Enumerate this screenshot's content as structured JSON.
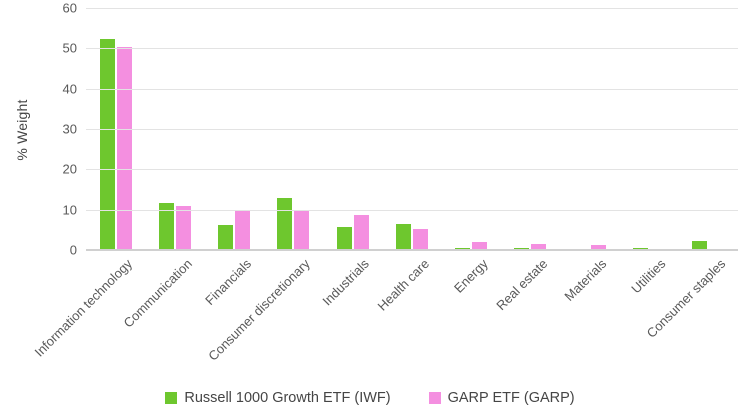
{
  "chart_data": {
    "type": "bar",
    "title": "",
    "xlabel": "",
    "ylabel": "% Weight",
    "ylim": [
      0,
      60
    ],
    "yticks": [
      0,
      10,
      20,
      30,
      40,
      50,
      60
    ],
    "grid": true,
    "legend_position": "bottom-center",
    "categories": [
      "Information technology",
      "Communication",
      "Financials",
      "Consumer discretionary",
      "Industrials",
      "Health care",
      "Energy",
      "Real estate",
      "Materials",
      "Utilities",
      "Consumer staples"
    ],
    "series": [
      {
        "name": "Russell 1000 Growth ETF (IWF)",
        "color": "#6ec72e",
        "values": [
          52.4,
          11.6,
          6.1,
          13.0,
          5.6,
          6.5,
          0.5,
          0.4,
          0.3,
          0.5,
          2.2
        ]
      },
      {
        "name": "GARP ETF (GARP)",
        "color": "#f48fe0",
        "values": [
          50.3,
          10.8,
          10.0,
          9.7,
          8.7,
          5.2,
          1.9,
          1.4,
          1.3,
          0.3,
          0.0
        ]
      }
    ]
  },
  "colors": {
    "gridline": "#e3e3e3",
    "axis_baseline": "#d0d0d0",
    "tick_text": "#595959",
    "axis_title_text": "#444444",
    "legend_text": "#454545",
    "background": "#ffffff"
  }
}
